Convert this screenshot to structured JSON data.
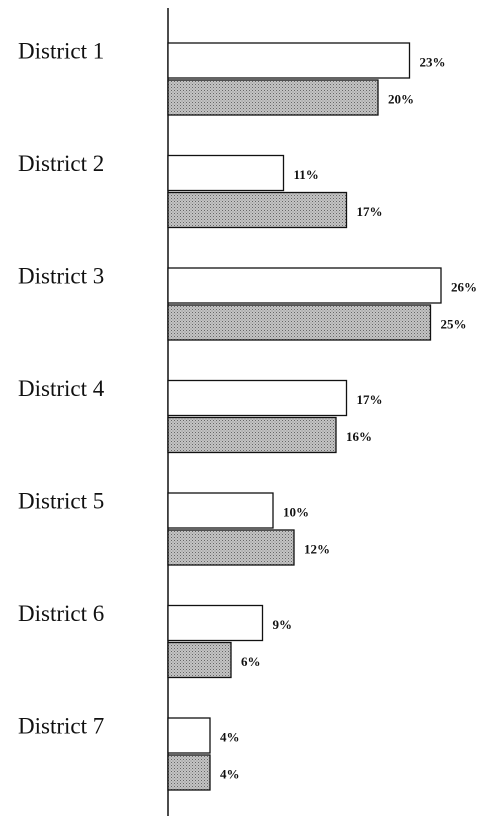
{
  "chart_data": {
    "type": "bar",
    "orientation": "horizontal",
    "categories": [
      "District 1",
      "District 2",
      "District 3",
      "District 4",
      "District 5",
      "District 6",
      "District 7"
    ],
    "series": [
      {
        "color": "#ffffff",
        "values": [
          23,
          11,
          26,
          17,
          10,
          9,
          4
        ],
        "value_labels": [
          "23%",
          "11%",
          "26%",
          "17%",
          "10%",
          "9%",
          "4%"
        ]
      },
      {
        "color": "#c4c4c4",
        "values": [
          20,
          17,
          25,
          16,
          12,
          6,
          4
        ],
        "value_labels": [
          "20%",
          "17%",
          "25%",
          "16%",
          "12%",
          "6%",
          "4%"
        ]
      }
    ]
  }
}
